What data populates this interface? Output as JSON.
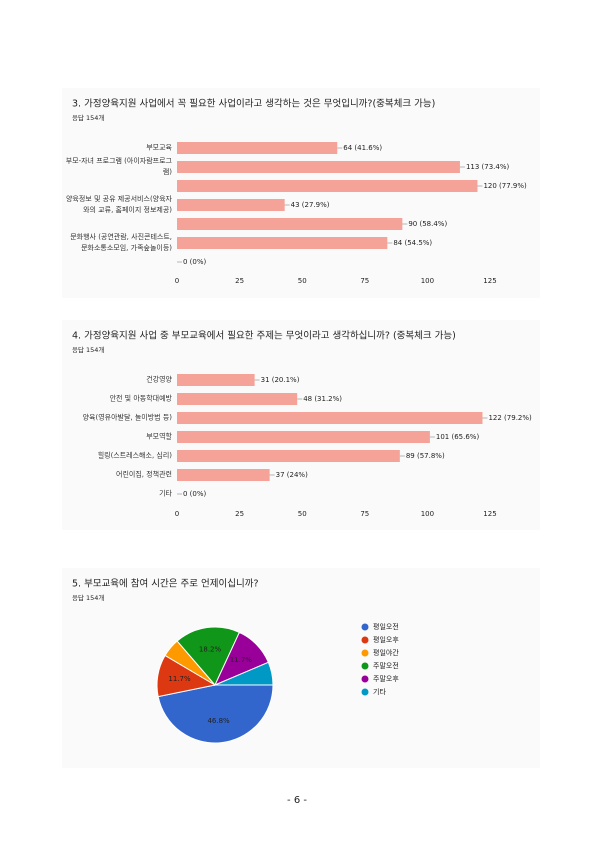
{
  "page_number": "- 6 -",
  "chart_data": [
    {
      "type": "bar",
      "orientation": "horizontal",
      "title": "3. 가정양육지원 사업에서 꼭 필요한 사업이라고 생각하는 것은 무엇입니까?(중복체크 가능)",
      "subtitle": "응답 154개",
      "categories": [
        "부모교육",
        "부모-자녀 프로그램 (아이자람프로그램)",
        null,
        "양육정보 및 공유 제공서비스(양육자와의 교류, 홈페이지 정보제공)",
        null,
        "문화행사 (공연관람, 사진콘테스트, 문화소통소모임, 가족숲놀이등)",
        null
      ],
      "values": [
        64,
        113,
        120,
        43,
        90,
        84,
        0
      ],
      "value_labels": [
        "64 (41.6%)",
        "113 (73.4%)",
        "120 (77.9%)",
        "43 (27.9%)",
        "90 (58.4%)",
        "84 (54.5%)",
        "0 (0%)"
      ],
      "color": "#f5a398",
      "xlim": [
        0,
        127
      ],
      "xticks": [
        0,
        25,
        50,
        75,
        100,
        125
      ]
    },
    {
      "type": "bar",
      "orientation": "horizontal",
      "title": "4. 가정양육지원 사업 중 부모교육에서 필요한 주제는 무엇이라고 생각하십니까? (중복체크 가능)",
      "subtitle": "응답 154개",
      "categories": [
        "건강영양",
        "안전 및 아동학대예방",
        "양육(영유아발달, 놀이방법 등)",
        "부모역할",
        "힐링(스트레스해소, 심리)",
        "어린이집, 정책관련",
        "기타"
      ],
      "values": [
        31,
        48,
        122,
        101,
        89,
        37,
        0
      ],
      "value_labels": [
        "31 (20.1%)",
        "48 (31.2%)",
        "122 (79.2%)",
        "101 (65.6%)",
        "89 (57.8%)",
        "37 (24%)",
        "0 (0%)"
      ],
      "color": "#f5a398",
      "xlim": [
        0,
        127
      ],
      "xticks": [
        0,
        25,
        50,
        75,
        100,
        125
      ]
    },
    {
      "type": "pie",
      "title": "5. 부모교육에 참여 시간은 주로 언제이십니까?",
      "subtitle": "응답 154개",
      "categories": [
        "평일오전",
        "평일오후",
        "평일야간",
        "주말오전",
        "주말오후",
        "기타"
      ],
      "values": [
        46.8,
        11.7,
        5.2,
        18.2,
        11.7,
        6.4
      ],
      "value_labels": [
        "46.8%",
        "11.7%",
        null,
        "18.2%",
        "11.7%",
        null
      ],
      "colors": [
        "#3366cc",
        "#dc3912",
        "#ff9900",
        "#109618",
        "#990099",
        "#0099c6"
      ],
      "legend": "right"
    }
  ]
}
